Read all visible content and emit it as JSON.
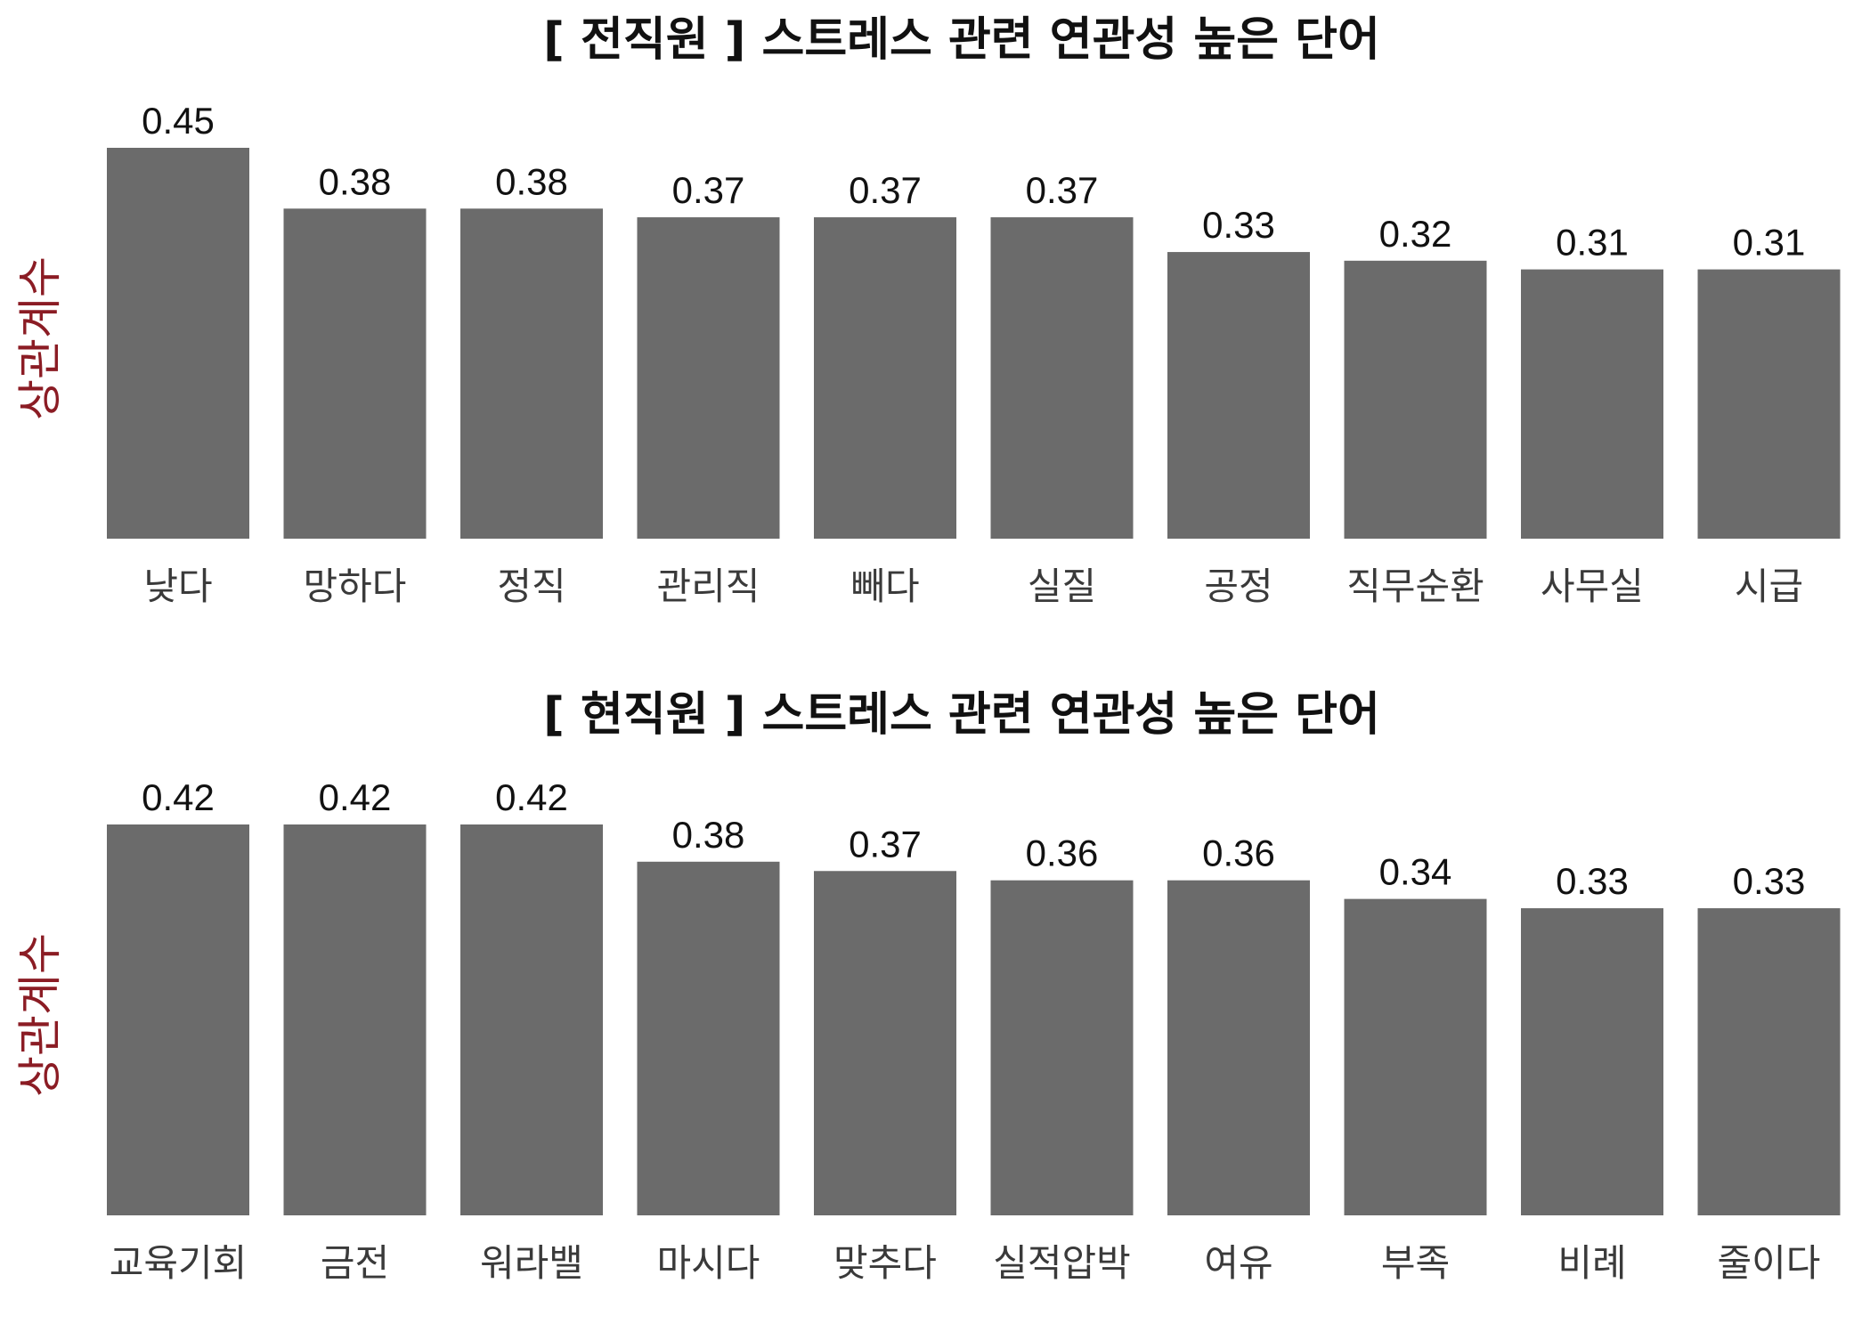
{
  "colors": {
    "bar": "#6b6b6b",
    "ylabel": "#8b1c24",
    "title": "#111111",
    "background": "#ffffff"
  },
  "chart_data": [
    {
      "type": "bar",
      "title": "[ 전직원 ] 스트레스 관련 연관성 높은 단어",
      "ylabel": "상관계수",
      "xlabel": "",
      "ylim": [
        0,
        0.45
      ],
      "grid": false,
      "categories": [
        "낮다",
        "망하다",
        "정직",
        "관리직",
        "빼다",
        "실질",
        "공정",
        "직무순환",
        "사무실",
        "시급"
      ],
      "values": [
        0.45,
        0.38,
        0.38,
        0.37,
        0.37,
        0.37,
        0.33,
        0.32,
        0.31,
        0.31
      ],
      "data_labels": [
        "0.45",
        "0.38",
        "0.38",
        "0.37",
        "0.37",
        "0.37",
        "0.33",
        "0.32",
        "0.31",
        "0.31"
      ]
    },
    {
      "type": "bar",
      "title": "[ 현직원 ] 스트레스 관련 연관성 높은 단어",
      "ylabel": "상관계수",
      "xlabel": "",
      "ylim": [
        0,
        0.42
      ],
      "grid": false,
      "categories": [
        "교육기회",
        "금전",
        "워라밸",
        "마시다",
        "맞추다",
        "실적압박",
        "여유",
        "부족",
        "비례",
        "줄이다"
      ],
      "values": [
        0.42,
        0.42,
        0.42,
        0.38,
        0.37,
        0.36,
        0.36,
        0.34,
        0.33,
        0.33
      ],
      "data_labels": [
        "0.42",
        "0.42",
        "0.42",
        "0.38",
        "0.37",
        "0.36",
        "0.36",
        "0.34",
        "0.33",
        "0.33"
      ]
    }
  ]
}
